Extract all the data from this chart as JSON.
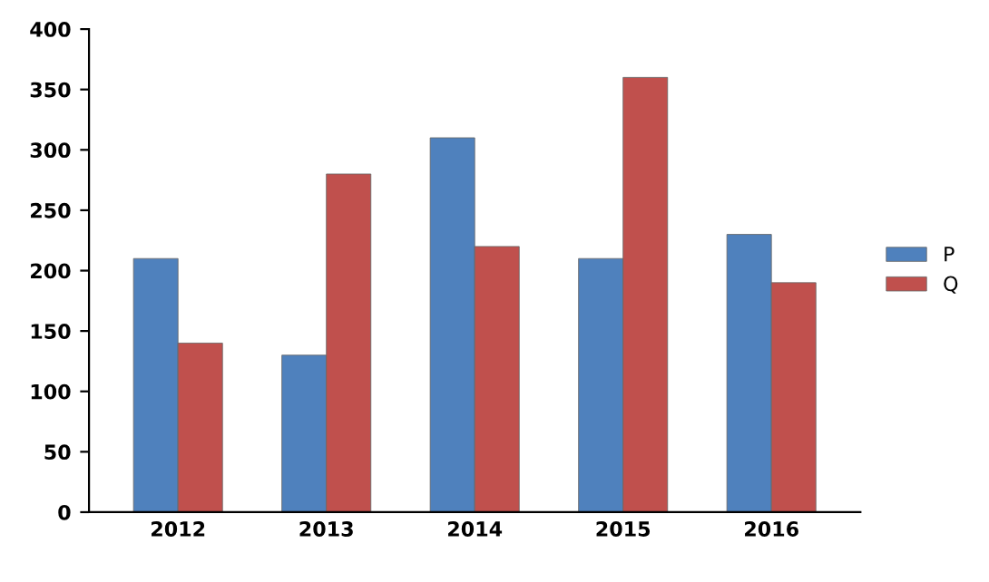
{
  "chart_data": {
    "type": "bar",
    "categories": [
      "2012",
      "2013",
      "2014",
      "2015",
      "2016"
    ],
    "series": [
      {
        "name": "P",
        "color": "#4f81bd",
        "values": [
          210,
          130,
          310,
          210,
          230
        ]
      },
      {
        "name": "Q",
        "color": "#c0504d",
        "values": [
          140,
          280,
          220,
          360,
          190
        ]
      }
    ],
    "ylim": [
      0,
      400
    ],
    "yticks": [
      0,
      50,
      100,
      150,
      200,
      250,
      300,
      350,
      400
    ],
    "grid": false,
    "legend": "right"
  }
}
